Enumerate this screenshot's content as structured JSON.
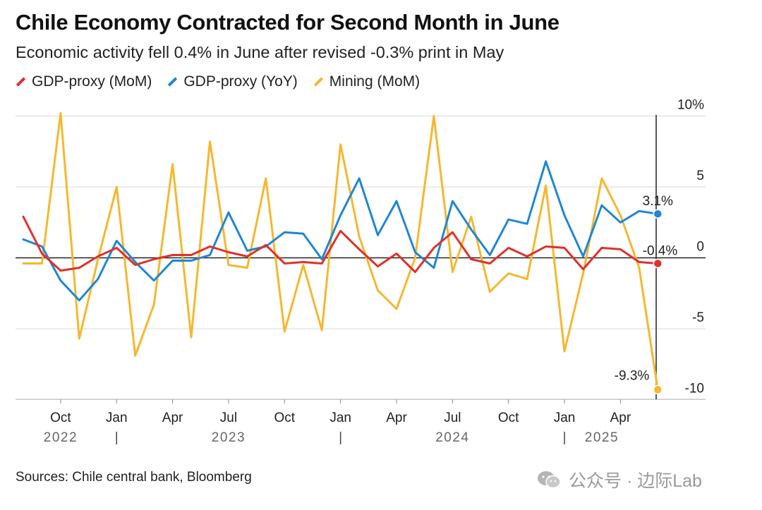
{
  "header": {
    "title": "Chile Economy Contracted for Second Month in June",
    "subtitle": "Economic activity fell 0.4% in June after revised -0.3% print in May"
  },
  "legend": [
    {
      "label": "GDP-proxy (MoM)",
      "color": "#e0312b"
    },
    {
      "label": "GDP-proxy (YoY)",
      "color": "#1f87d6"
    },
    {
      "label": "Mining (MoM)",
      "color": "#f5b82e"
    }
  ],
  "chart_data": {
    "type": "line",
    "x": [
      "2022-08",
      "2022-09",
      "2022-10",
      "2022-11",
      "2022-12",
      "2023-01",
      "2023-02",
      "2023-03",
      "2023-04",
      "2023-05",
      "2023-06",
      "2023-07",
      "2023-08",
      "2023-09",
      "2023-10",
      "2023-11",
      "2023-12",
      "2024-01",
      "2024-02",
      "2024-03",
      "2024-04",
      "2024-05",
      "2024-06",
      "2024-07",
      "2024-08",
      "2024-09",
      "2024-10",
      "2024-11",
      "2024-12",
      "2025-01",
      "2025-02",
      "2025-03",
      "2025-04",
      "2025-05",
      "2025-06"
    ],
    "series": [
      {
        "name": "GDP-proxy (MoM)",
        "color": "#e0312b",
        "values": [
          2.9,
          0.3,
          -0.9,
          -0.7,
          0.1,
          0.7,
          -0.5,
          -0.1,
          0.2,
          0.2,
          0.8,
          0.4,
          0.1,
          0.9,
          -0.4,
          -0.3,
          -0.4,
          1.9,
          0.6,
          -0.6,
          0.3,
          -1.0,
          0.7,
          1.8,
          -0.1,
          -0.4,
          0.7,
          0.1,
          0.8,
          0.7,
          -0.8,
          0.7,
          0.6,
          -0.3,
          -0.4
        ]
      },
      {
        "name": "GDP-proxy (YoY)",
        "color": "#1f87d6",
        "values": [
          1.3,
          0.8,
          -1.6,
          -3.0,
          -1.5,
          1.2,
          -0.3,
          -1.6,
          -0.2,
          -0.2,
          0.2,
          3.2,
          0.5,
          0.8,
          1.8,
          1.7,
          -0.1,
          3.0,
          5.6,
          1.6,
          4.0,
          0.4,
          -0.7,
          4.0,
          2.0,
          0.2,
          2.7,
          2.4,
          6.8,
          3.0,
          0.1,
          3.7,
          2.5,
          3.3,
          3.1
        ]
      },
      {
        "name": "Mining (MoM)",
        "color": "#f5b82e",
        "values": [
          -0.4,
          -0.4,
          10.2,
          -5.7,
          -0.1,
          5.0,
          -6.9,
          -3.3,
          6.6,
          -5.6,
          8.2,
          -0.5,
          -0.7,
          5.6,
          -5.2,
          -0.5,
          -5.1,
          8.0,
          1.5,
          -2.3,
          -3.6,
          0.0,
          10.0,
          -1.0,
          2.9,
          -2.4,
          -1.1,
          -1.5,
          5.1,
          -6.6,
          -1.1,
          5.6,
          3.0,
          -0.7,
          -9.3
        ]
      }
    ],
    "annotations": [
      {
        "series": "GDP-proxy (YoY)",
        "text": "3.1%"
      },
      {
        "series": "GDP-proxy (MoM)",
        "text": "-0.4%"
      },
      {
        "series": "Mining (MoM)",
        "text": "-9.3%"
      }
    ],
    "y_ticks": [
      {
        "value": 10,
        "label": "10%"
      },
      {
        "value": 5,
        "label": "5"
      },
      {
        "value": 0,
        "label": "0"
      },
      {
        "value": -5,
        "label": "-5"
      },
      {
        "value": -10,
        "label": "-10"
      }
    ],
    "ylim": [
      -10,
      10.8
    ],
    "x_ticks": [
      {
        "date": "2022-10",
        "label": "Oct"
      },
      {
        "date": "2023-01",
        "label": "Jan"
      },
      {
        "date": "2023-04",
        "label": "Apr"
      },
      {
        "date": "2023-07",
        "label": "Jul"
      },
      {
        "date": "2023-10",
        "label": "Oct"
      },
      {
        "date": "2024-01",
        "label": "Jan"
      },
      {
        "date": "2024-04",
        "label": "Apr"
      },
      {
        "date": "2024-07",
        "label": "Jul"
      },
      {
        "date": "2024-10",
        "label": "Oct"
      },
      {
        "date": "2025-01",
        "label": "Jan"
      },
      {
        "date": "2025-04",
        "label": "Apr"
      }
    ],
    "year_labels": [
      {
        "date": "2022-10",
        "label": "2022"
      },
      {
        "date": "2023-07",
        "label": "2023"
      },
      {
        "date": "2024-07",
        "label": "2024"
      },
      {
        "date": "2025-03",
        "label": "2025"
      }
    ],
    "year_dividers": [
      "2023-01",
      "2024-01",
      "2025-01"
    ],
    "grid": true,
    "legend_position": "top-left"
  },
  "footer": {
    "source": "Sources: Chile central bank, Bloomberg",
    "watermark": "公众号 · 边际Lab"
  }
}
